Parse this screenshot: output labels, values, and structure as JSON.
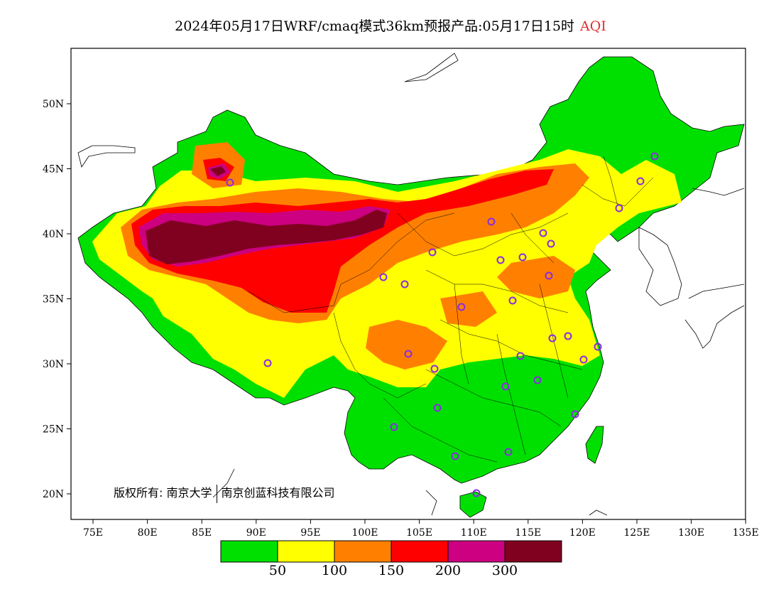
{
  "title": {
    "main": "2024年05月17日WRF/cmaq模式36km预报产品:05月17日15时",
    "variable": "AQI",
    "variable_color": "#e03030"
  },
  "axes": {
    "lon_ticks": [
      "75E",
      "80E",
      "85E",
      "90E",
      "95E",
      "100E",
      "105E",
      "110E",
      "115E",
      "120E",
      "125E",
      "130E",
      "135E"
    ],
    "lat_ticks": [
      "20N",
      "25N",
      "30N",
      "35N",
      "40N",
      "45N",
      "50N"
    ],
    "lon_range": [
      73,
      135
    ],
    "lat_range": [
      18,
      54
    ]
  },
  "credit": {
    "label": "版权所有:",
    "org1": "南京大学",
    "org2": "南京创蓝科技有限公司"
  },
  "legend": {
    "colors": [
      "#00e000",
      "#ffff00",
      "#ff8000",
      "#ff0000",
      "#cc0080",
      "#800020"
    ],
    "labels": [
      "50",
      "100",
      "150",
      "200",
      "300"
    ]
  },
  "city_marker_color": "#8a2be2"
}
